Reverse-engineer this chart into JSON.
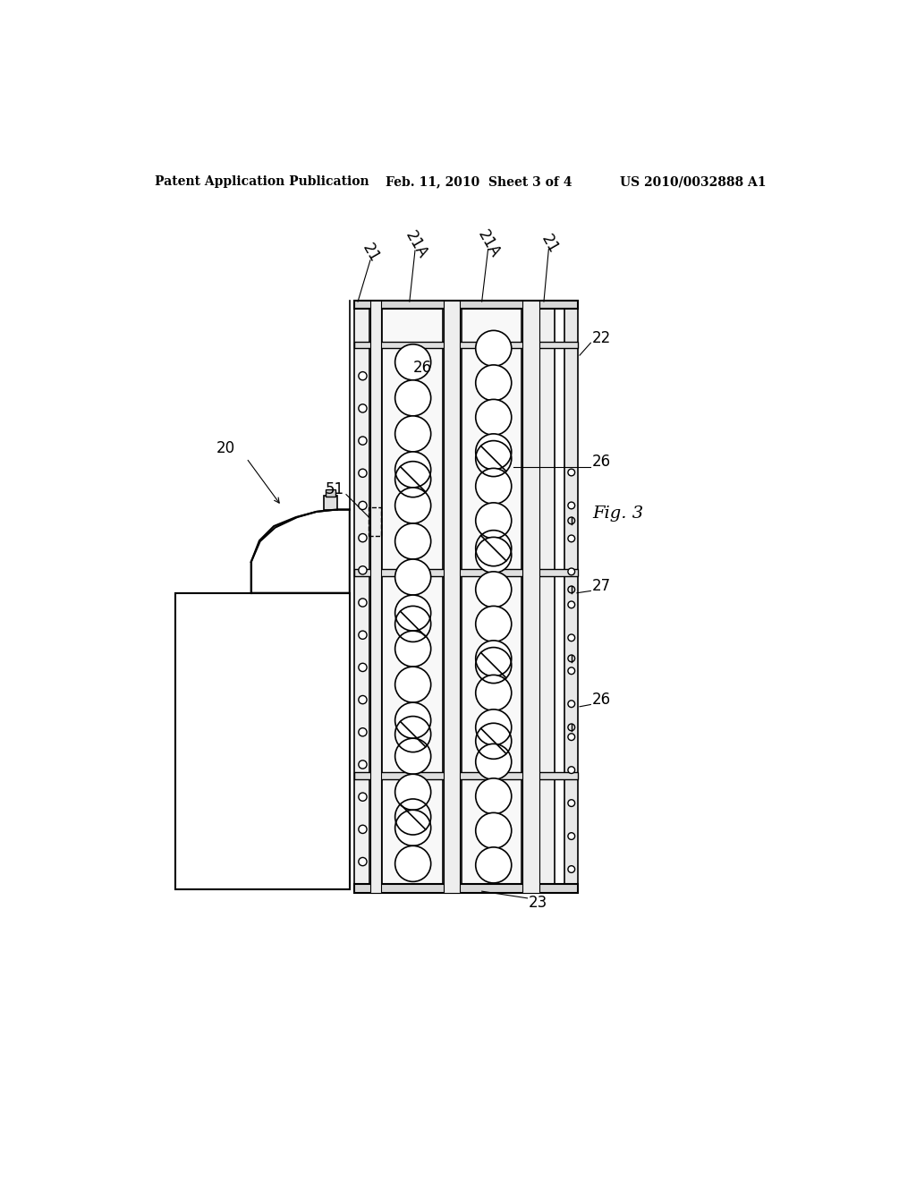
{
  "title_left": "Patent Application Publication",
  "title_mid": "Feb. 11, 2010  Sheet 3 of 4",
  "title_right": "US 2010/0032888 A1",
  "fig_label": "Fig. 3",
  "background": "#ffffff",
  "line_color": "#000000",
  "label_20": "20",
  "label_21": "21",
  "label_21A": "21A",
  "label_22": "22",
  "label_23": "23",
  "label_26": "26",
  "label_27": "27",
  "label_51": "51"
}
